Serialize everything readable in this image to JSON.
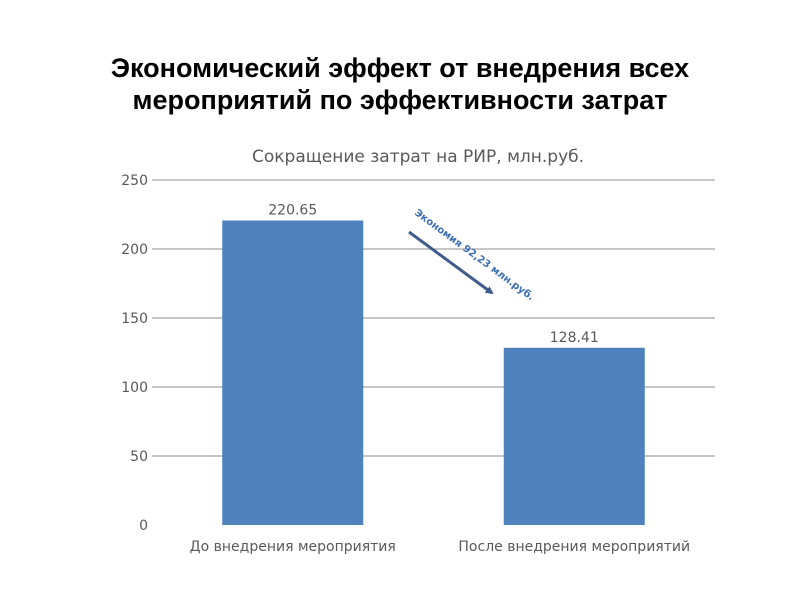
{
  "slide": {
    "title_line1": "Экономический эффект от внедрения всех",
    "title_line2": "мероприятий по эффективности затрат"
  },
  "chart_data": {
    "type": "bar",
    "title": "Сокращение затрат на РИР, млн.руб.",
    "categories": [
      "До внедрения мероприятия",
      "После внедрения мероприятий"
    ],
    "values": [
      220.65,
      128.41
    ],
    "data_labels": [
      "220.65",
      "128.41"
    ],
    "ylim": [
      0,
      250
    ],
    "yticks": [
      0,
      50,
      100,
      150,
      200,
      250
    ],
    "grid": true,
    "legend": "none",
    "bar_color": "#4f81bd",
    "annotation": {
      "text": "Экономия 92,23 млн.руб.",
      "color": "#3f6fb5"
    }
  }
}
